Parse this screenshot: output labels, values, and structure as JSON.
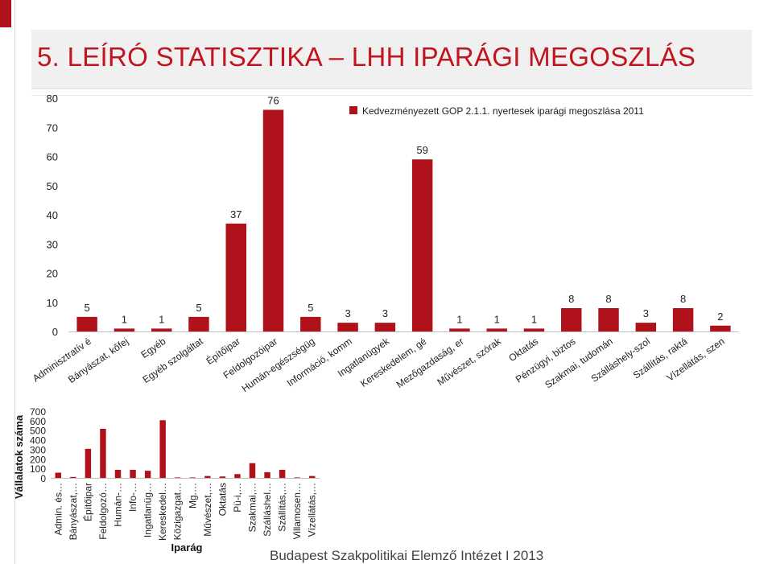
{
  "slide": {
    "title": "5. LEÍRÓ STATISZTIKA – LHH IPARÁGI MEGOSZLÁS",
    "footer": "Budapest Szakpolitikai Elemző Intézet I 2013"
  },
  "colors": {
    "bar": "#b0121c",
    "accent": "#b0121c",
    "title": "#c0141e"
  },
  "chart_data": [
    {
      "type": "bar",
      "legend": "Kedvezményezett GOP 2.1.1. nyertesek iparági megoszlása 2011",
      "legend_placement": "top-right",
      "categories": [
        "Adminisztratív é",
        "Bányászat, kőfej",
        "Egyéb",
        "Egyéb szolgáltat",
        "Építőipar",
        "Feldolgozóipar",
        "Humán-egészségüg",
        "Információ, komm",
        "Ingatlanügyek",
        "Kereskedelem, gé",
        "Mezőgazdaság, er",
        "Művészet, szórak",
        "Oktatás",
        "Pénzügyi, biztos",
        "Szakmai, tudomán",
        "Szálláshely-szol",
        "Szállítás, raktá",
        "Vízellátás, szen"
      ],
      "values": [
        5,
        1,
        1,
        5,
        37,
        76,
        5,
        3,
        3,
        59,
        1,
        1,
        1,
        8,
        8,
        3,
        8,
        2
      ],
      "value_labels": [
        "5",
        "1",
        "1",
        "5",
        "37",
        "76",
        "5",
        "3",
        "3",
        "59",
        "1",
        "1",
        "1",
        "8",
        "8",
        "3",
        "8",
        "2"
      ],
      "ylim": [
        0,
        80
      ],
      "yticks": [
        "0",
        "10",
        "20",
        "30",
        "40",
        "50",
        "60",
        "70",
        "80"
      ],
      "grid": false
    },
    {
      "type": "bar",
      "categories": [
        "Admin. és…",
        "Bányászat,…",
        "Építőipar",
        "Feldolgozó…",
        "Humán-…",
        "Info-…",
        "Ingatlanüg…",
        "Kereskedel…",
        "Közigazgat…",
        "Mg.…",
        "Művészet,…",
        "Oktatás",
        "Pü-i,…",
        "Szakmai,…",
        "Szálláshel…",
        "Szállítás,…",
        "Villamosen…",
        "Vízellátás,…"
      ],
      "values": [
        55,
        10,
        305,
        515,
        85,
        85,
        75,
        605,
        5,
        5,
        20,
        15,
        40,
        155,
        60,
        85,
        5,
        20
      ],
      "ylim": [
        0,
        700
      ],
      "yticks": [
        "0",
        "100",
        "200",
        "300",
        "400",
        "500",
        "600",
        "700"
      ],
      "ylabel": "Vállalatok száma",
      "xlabel": "Iparág",
      "grid": false
    }
  ]
}
